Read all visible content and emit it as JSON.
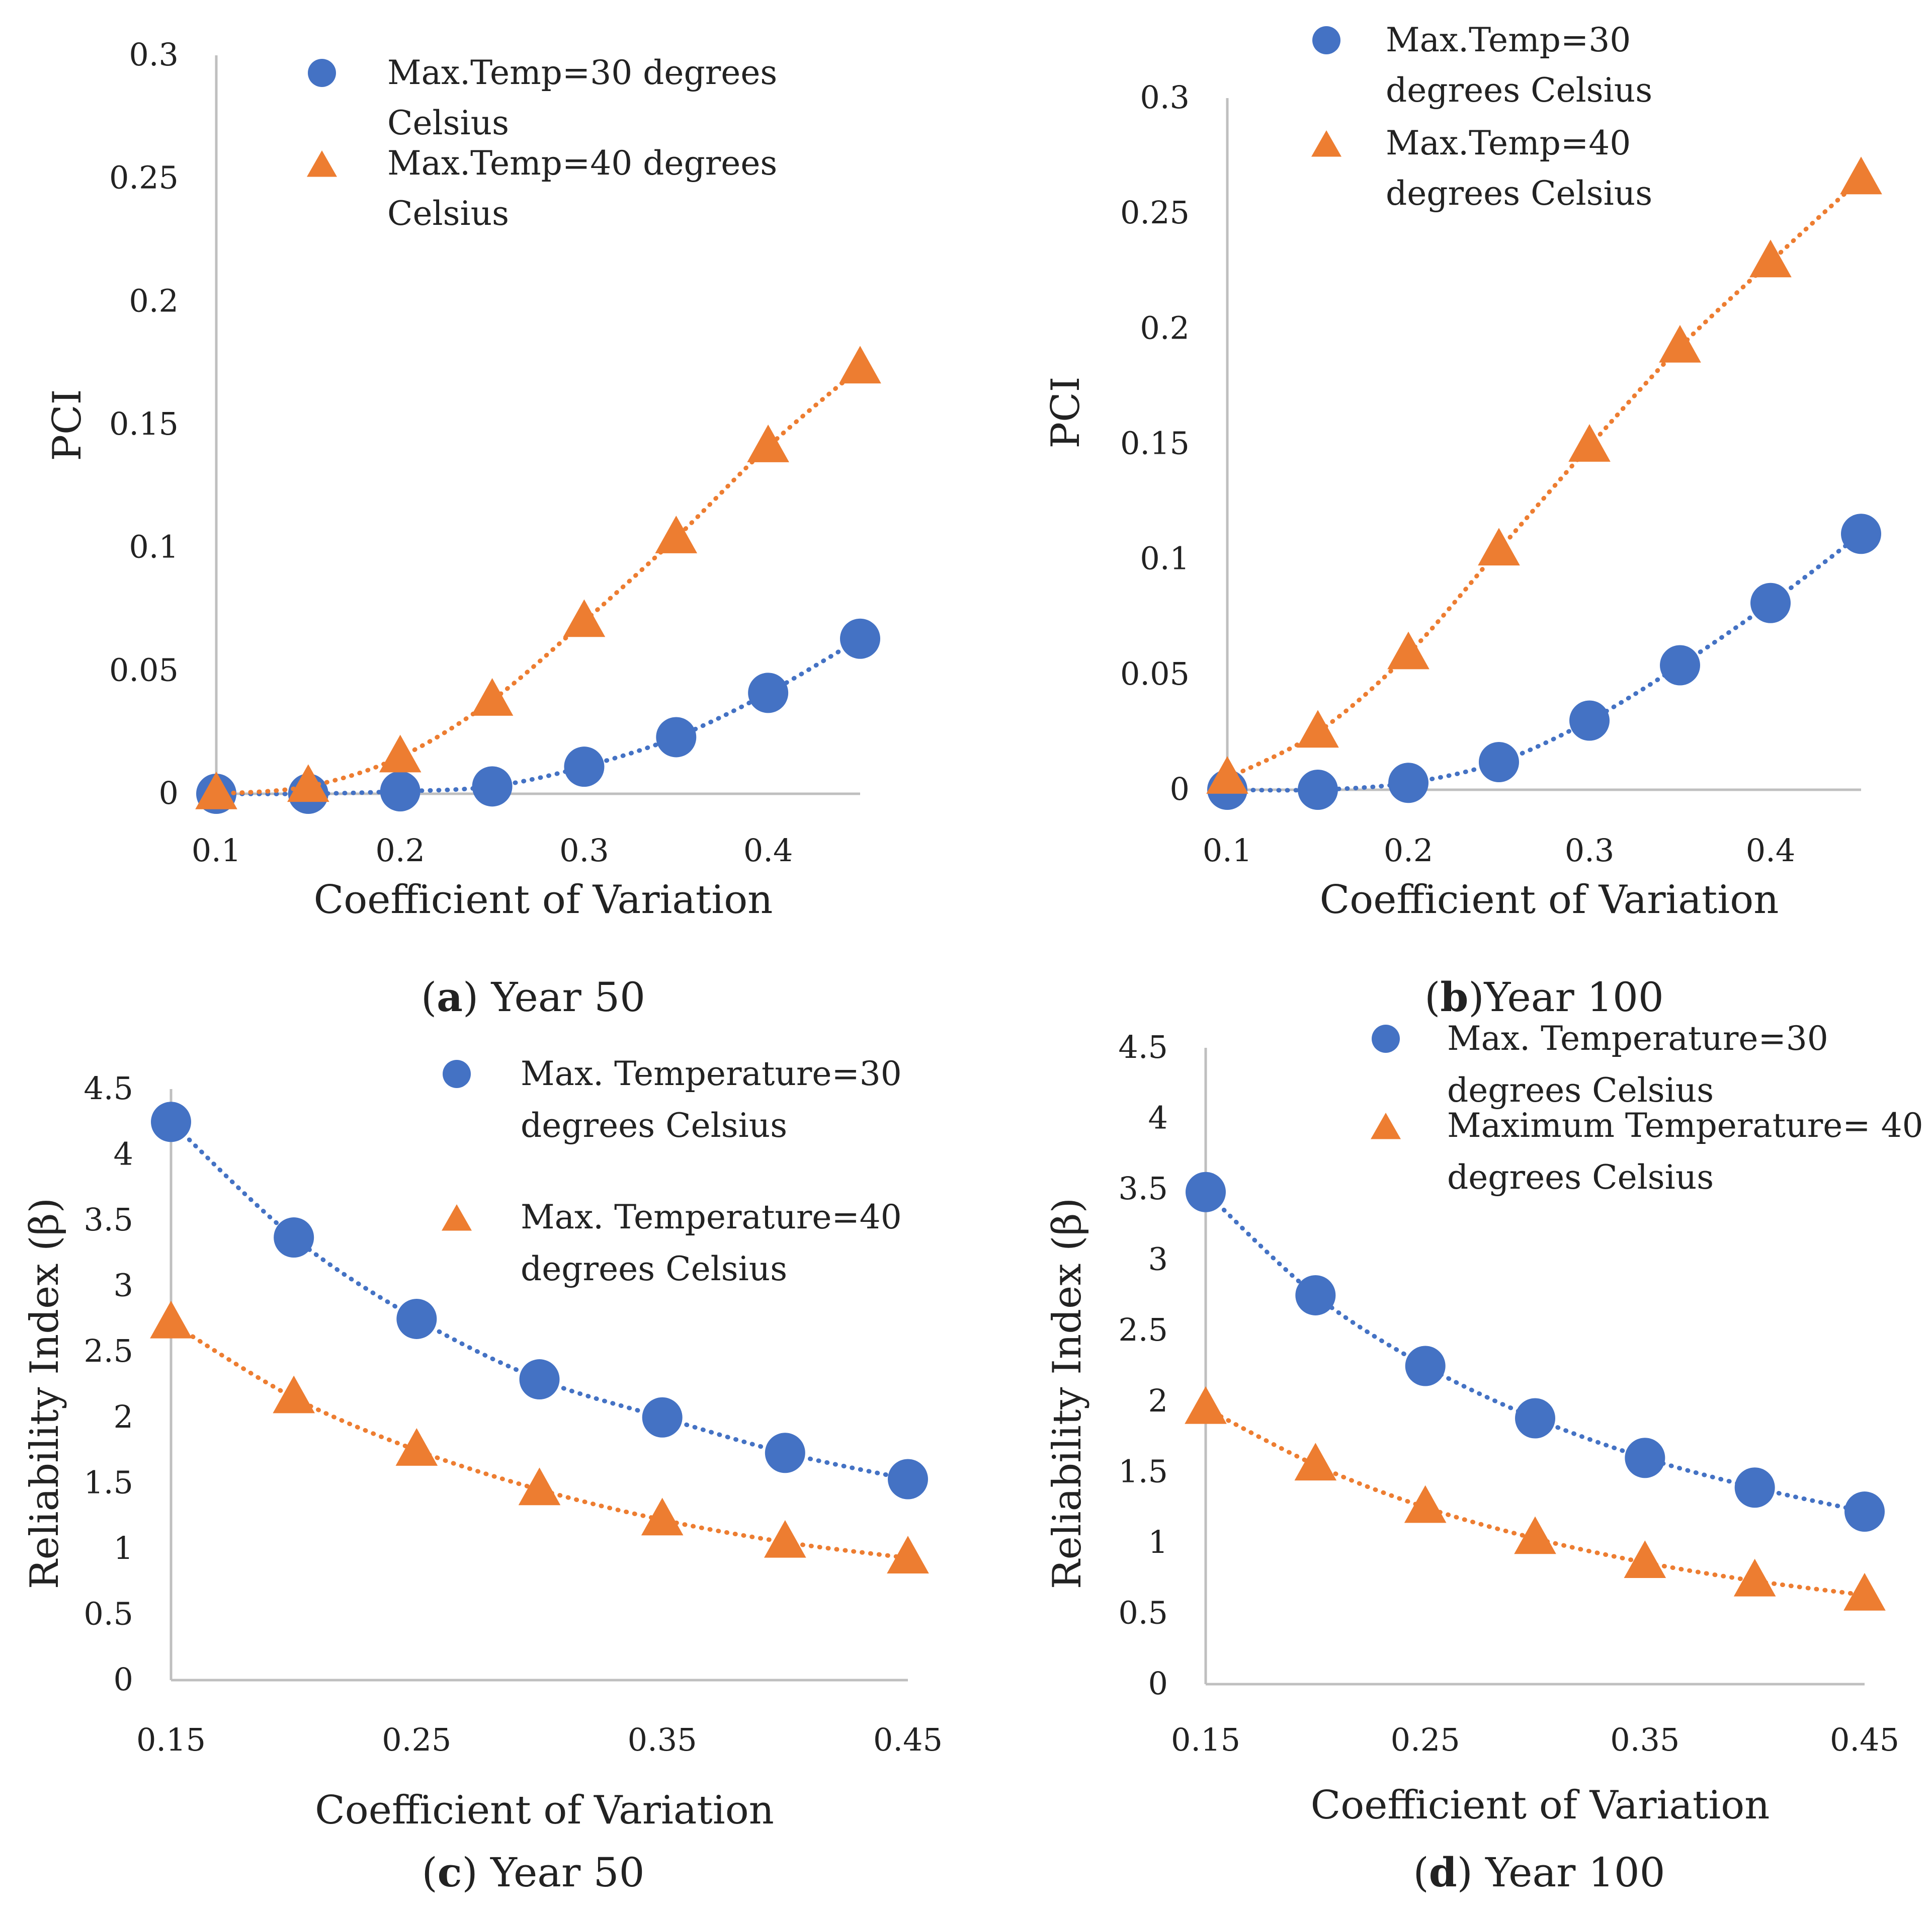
{
  "colors": {
    "series_30": "#4472C4",
    "series_40": "#ED7D31",
    "axis": "#BFBFBF",
    "text": "#222222"
  },
  "chart_data": [
    {
      "id": "a",
      "type": "scatter",
      "trendline": "dotted",
      "caption_letter": "a",
      "caption_text": ") Year 50",
      "xlabel": "Coefficient of Variation",
      "ylabel": "PCI",
      "xlim": [
        0.1,
        0.45
      ],
      "ylim": [
        0,
        0.3
      ],
      "x_ticks": [
        "0.1",
        "0.2",
        "0.3",
        "0.4"
      ],
      "x_tick_values": [
        0.1,
        0.2,
        0.3,
        0.4
      ],
      "y_ticks": [
        "0",
        "0.05",
        "0.1",
        "0.15",
        "0.2",
        "0.25",
        "0.3"
      ],
      "y_tick_values": [
        0,
        0.05,
        0.1,
        0.15,
        0.2,
        0.25,
        0.3
      ],
      "legend_position": "top-right",
      "series": [
        {
          "name_lines": [
            "Max.Temp=30 degrees",
            "Celsius"
          ],
          "marker": "circle",
          "color_key": "series_30",
          "x": [
            0.1,
            0.15,
            0.2,
            0.25,
            0.3,
            0.35,
            0.4,
            0.45
          ],
          "y": [
            0,
            0,
            0.001,
            0.003,
            0.011,
            0.023,
            0.041,
            0.063
          ]
        },
        {
          "name_lines": [
            "Max.Temp=40 degrees",
            "Celsius"
          ],
          "marker": "triangle",
          "color_key": "series_40",
          "x": [
            0.1,
            0.15,
            0.2,
            0.25,
            0.3,
            0.35,
            0.4,
            0.45
          ],
          "y": [
            0,
            0.003,
            0.015,
            0.038,
            0.07,
            0.104,
            0.141,
            0.173
          ]
        }
      ]
    },
    {
      "id": "b",
      "type": "scatter",
      "trendline": "dotted",
      "caption_letter": "b",
      "caption_text": ")Year 100",
      "xlabel": "Coefficient of Variation",
      "ylabel": "PCI",
      "xlim": [
        0.1,
        0.45
      ],
      "ylim": [
        0,
        0.3
      ],
      "x_ticks": [
        "0.1",
        "0.2",
        "0.3",
        "0.4"
      ],
      "x_tick_values": [
        0.1,
        0.2,
        0.3,
        0.4
      ],
      "y_ticks": [
        "0",
        "0.05",
        "0.1",
        "0.15",
        "0.2",
        "0.25",
        "0.3"
      ],
      "y_tick_values": [
        0,
        0.05,
        0.1,
        0.15,
        0.2,
        0.25,
        0.3
      ],
      "legend_position": "top-right",
      "series": [
        {
          "name_lines": [
            "Max.Temp=30",
            "degrees Celsius"
          ],
          "marker": "circle",
          "color_key": "series_30",
          "x": [
            0.1,
            0.15,
            0.2,
            0.25,
            0.3,
            0.35,
            0.4,
            0.45
          ],
          "y": [
            0,
            0,
            0.003,
            0.012,
            0.03,
            0.054,
            0.081,
            0.111
          ]
        },
        {
          "name_lines": [
            "Max.Temp=40",
            "degrees Celsius"
          ],
          "marker": "triangle",
          "color_key": "series_40",
          "x": [
            0.1,
            0.15,
            0.2,
            0.25,
            0.3,
            0.35,
            0.4,
            0.45
          ],
          "y": [
            0.005,
            0.025,
            0.059,
            0.104,
            0.149,
            0.192,
            0.229,
            0.265
          ]
        }
      ]
    },
    {
      "id": "c",
      "type": "scatter",
      "trendline": "dotted",
      "caption_letter": "c",
      "caption_text": ") Year 50",
      "xlabel": "Coefficient of Variation",
      "ylabel": "Reliability Index (β)",
      "xlim": [
        0.15,
        0.45
      ],
      "ylim": [
        0,
        4.5
      ],
      "x_ticks": [
        "0.15",
        "0.25",
        "0.35",
        "0.45"
      ],
      "x_tick_values": [
        0.15,
        0.25,
        0.35,
        0.45
      ],
      "y_ticks": [
        "0",
        "0.5",
        "1",
        "1.5",
        "2",
        "2.5",
        "3",
        "3.5",
        "4",
        "4.5"
      ],
      "y_tick_values": [
        0,
        0.5,
        1,
        1.5,
        2,
        2.5,
        3,
        3.5,
        4,
        4.5
      ],
      "legend_position": "top-right",
      "series": [
        {
          "name_lines": [
            "Max. Temperature=30",
            "degrees Celsius"
          ],
          "marker": "circle",
          "color_key": "series_30",
          "x": [
            0.15,
            0.2,
            0.25,
            0.3,
            0.35,
            0.4,
            0.45
          ],
          "y": [
            4.25,
            3.37,
            2.75,
            2.29,
            2.0,
            1.73,
            1.53
          ]
        },
        {
          "name_lines": [
            "Max. Temperature=40",
            "degrees Celsius"
          ],
          "marker": "triangle",
          "color_key": "series_40",
          "x": [
            0.15,
            0.2,
            0.25,
            0.3,
            0.35,
            0.4,
            0.45
          ],
          "y": [
            2.72,
            2.15,
            1.75,
            1.45,
            1.22,
            1.05,
            0.93
          ]
        }
      ]
    },
    {
      "id": "d",
      "type": "scatter",
      "trendline": "dotted",
      "caption_letter": "d",
      "caption_text": ") Year 100",
      "xlabel": "Coefficient of Variation",
      "ylabel": "Reliability Index (β)",
      "xlim": [
        0.15,
        0.45
      ],
      "ylim": [
        0,
        4.5
      ],
      "x_ticks": [
        "0.15",
        "0.25",
        "0.35",
        "0.45"
      ],
      "x_tick_values": [
        0.15,
        0.25,
        0.35,
        0.45
      ],
      "y_ticks": [
        "0",
        "0.5",
        "1",
        "1.5",
        "2",
        "2.5",
        "3",
        "3.5",
        "4",
        "4.5"
      ],
      "y_tick_values": [
        0,
        0.5,
        1,
        1.5,
        2,
        2.5,
        3,
        3.5,
        4,
        4.5
      ],
      "legend_position": "top-right",
      "series": [
        {
          "name_lines": [
            "Max. Temperature=30",
            "degrees Celsius"
          ],
          "marker": "circle",
          "color_key": "series_30",
          "x": [
            0.15,
            0.2,
            0.25,
            0.3,
            0.35,
            0.4,
            0.45
          ],
          "y": [
            3.48,
            2.75,
            2.25,
            1.88,
            1.6,
            1.39,
            1.22
          ]
        },
        {
          "name_lines": [
            "Maximum Temperature= 40",
            "degrees Celsius"
          ],
          "marker": "triangle",
          "color_key": "series_40",
          "x": [
            0.15,
            0.2,
            0.25,
            0.3,
            0.35,
            0.4,
            0.45
          ],
          "y": [
            1.95,
            1.55,
            1.25,
            1.03,
            0.86,
            0.73,
            0.63
          ]
        }
      ]
    }
  ]
}
